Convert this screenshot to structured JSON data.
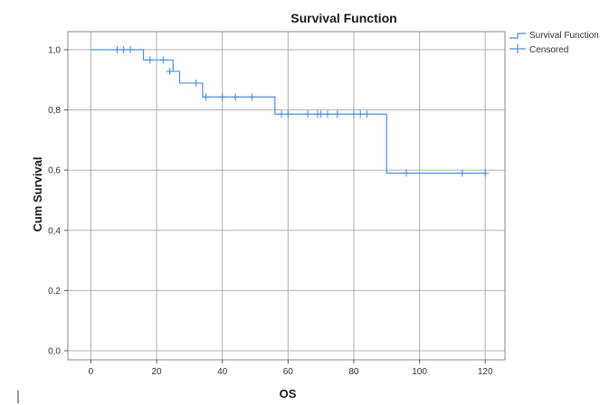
{
  "chart_data": {
    "type": "line",
    "title": "Survival Function",
    "xlabel": "OS",
    "ylabel": "Cum Survival",
    "xlim": [
      -7,
      126
    ],
    "ylim": [
      -0.03,
      1.06
    ],
    "x_ticks": [
      0,
      20,
      40,
      60,
      80,
      100,
      120
    ],
    "x_tick_labels": [
      "0",
      "20",
      "40",
      "60",
      "80",
      "100",
      "120"
    ],
    "y_ticks": [
      0.0,
      0.2,
      0.4,
      0.6,
      0.8,
      1.0
    ],
    "y_tick_labels": [
      "0,0",
      "0,2",
      "0,4",
      "0,6",
      "0,8",
      "1,0"
    ],
    "grid": true,
    "legend_position": "top-right",
    "series": [
      {
        "name": "Survival Function",
        "style": "step",
        "color": "#4a90e2",
        "x": [
          0,
          16,
          23,
          25,
          27,
          33,
          34,
          56,
          90,
          120
        ],
        "y": [
          1.0,
          0.966,
          0.966,
          0.928,
          0.889,
          0.889,
          0.843,
          0.786,
          0.59,
          0.59
        ]
      },
      {
        "name": "Censored",
        "style": "marker",
        "color": "#4a90e2",
        "x": [
          8,
          10,
          12,
          18,
          22,
          24,
          32,
          35,
          40,
          44,
          49,
          58,
          60,
          66,
          69,
          70,
          72,
          75,
          80,
          82,
          84,
          96,
          113,
          120
        ],
        "y": [
          1.0,
          1.0,
          1.0,
          0.966,
          0.966,
          0.928,
          0.889,
          0.843,
          0.843,
          0.843,
          0.843,
          0.786,
          0.786,
          0.786,
          0.786,
          0.786,
          0.786,
          0.786,
          0.786,
          0.786,
          0.786,
          0.59,
          0.59,
          0.59
        ]
      }
    ]
  },
  "colors": {
    "line": "#4a90e2",
    "grid": "#b0b0b0",
    "frame": "#8a8a8a"
  }
}
